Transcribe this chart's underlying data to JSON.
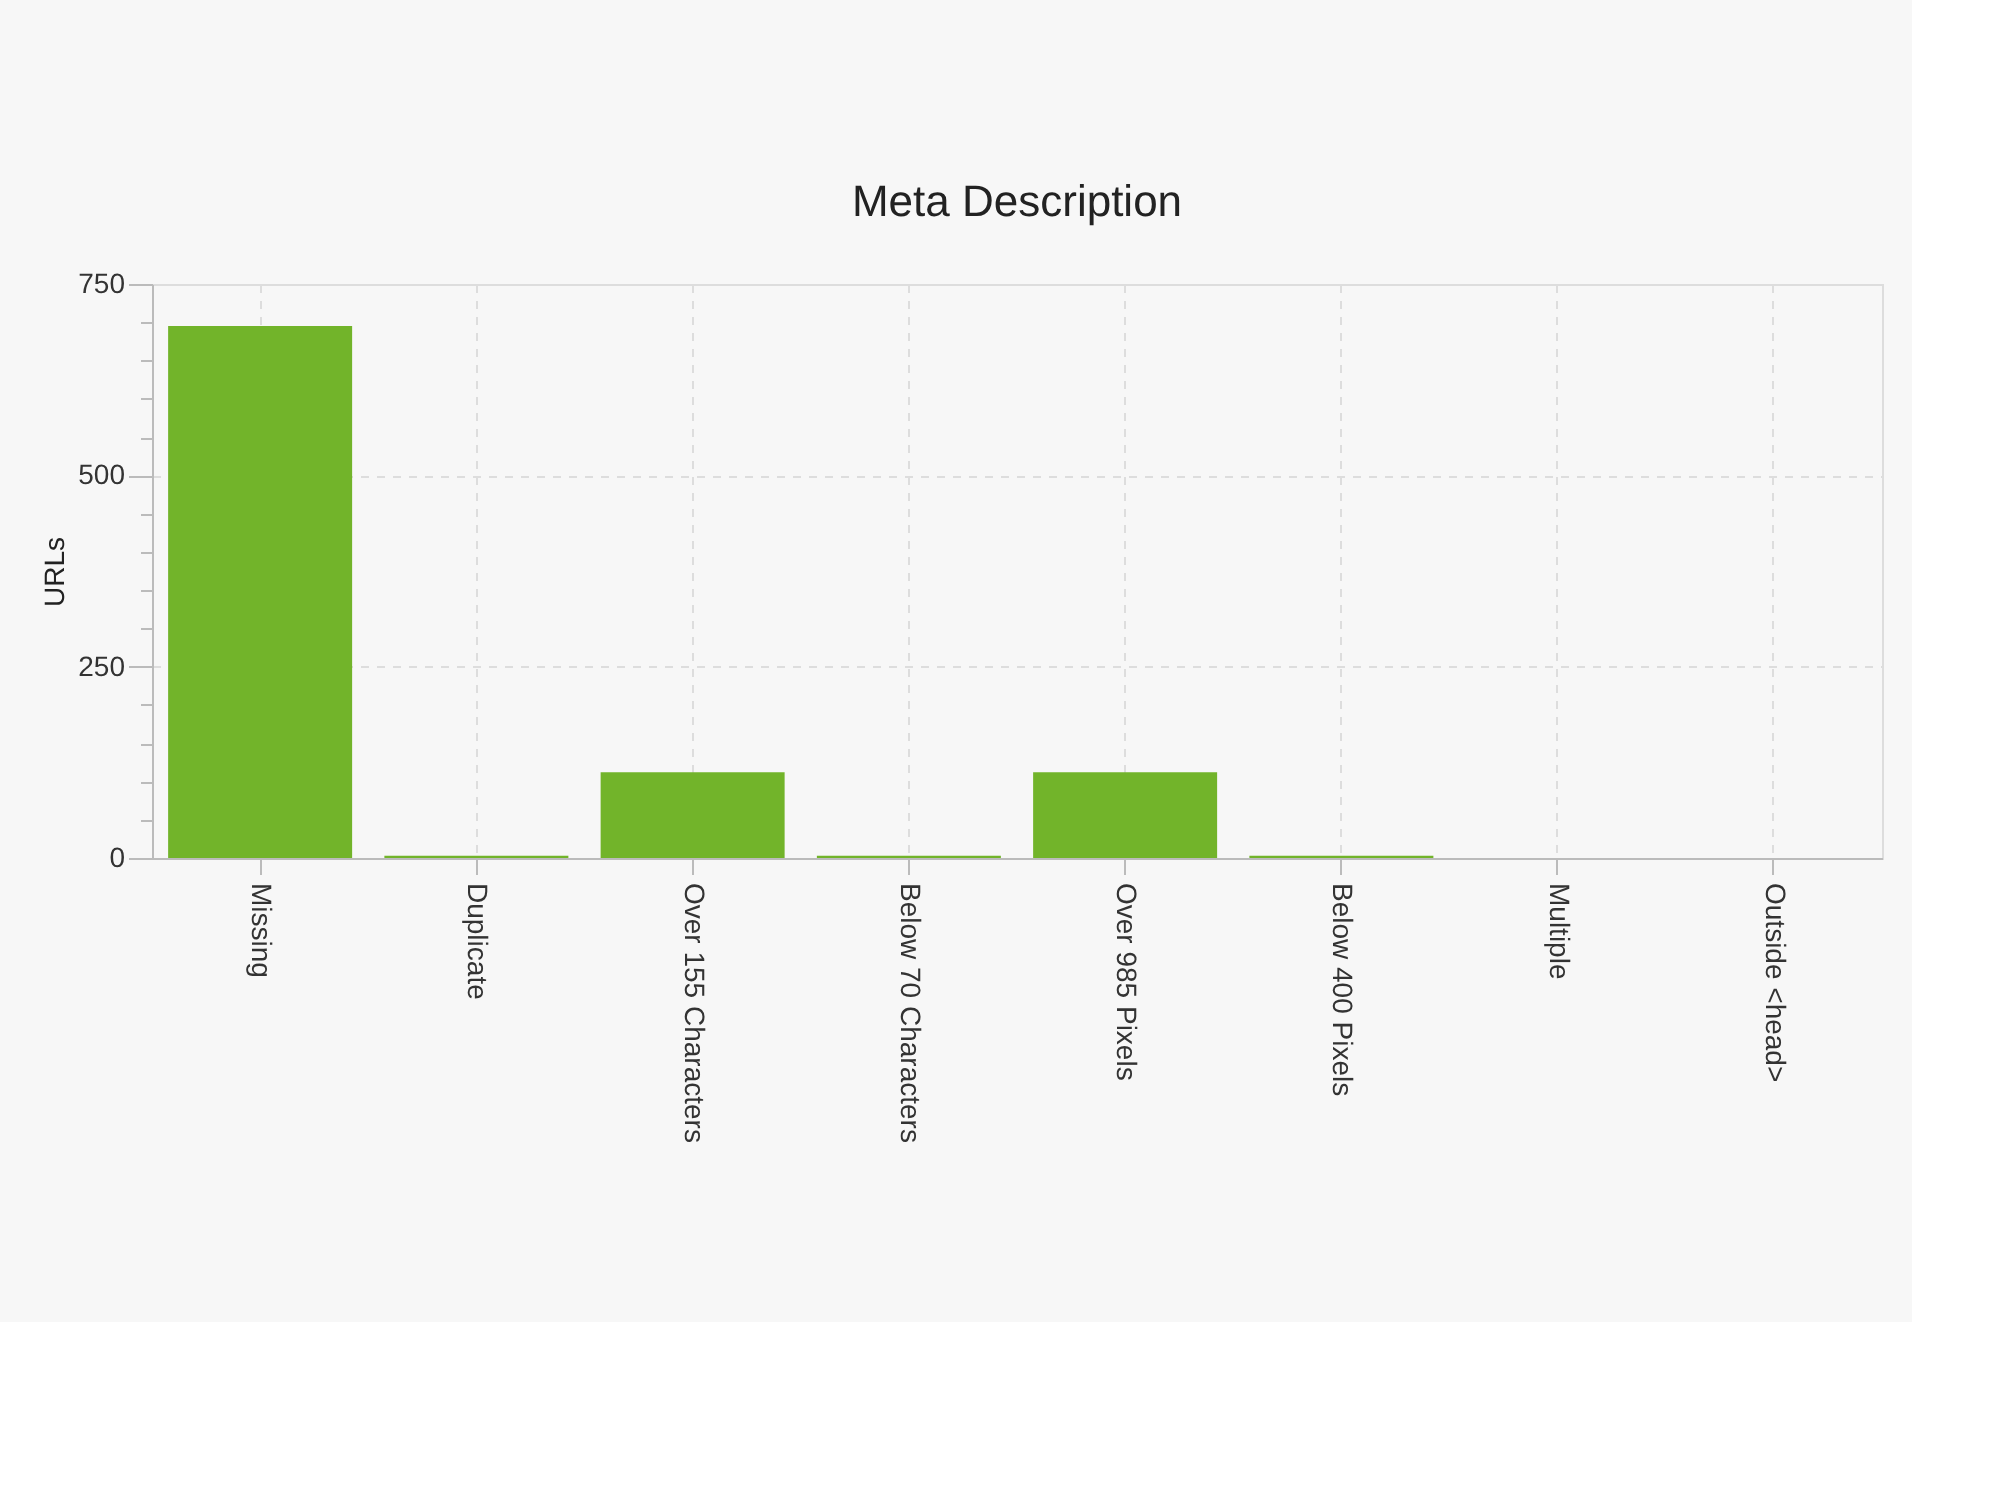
{
  "chart_data": {
    "type": "bar",
    "title": "Meta Description",
    "ylabel": "URLs",
    "categories": [
      "Missing",
      "Duplicate",
      "Over 155 Characters",
      "Below 70 Characters",
      "Over 985 Pixels",
      "Below 400 Pixels",
      "Multiple",
      "Outside <head>"
    ],
    "values": [
      695,
      3,
      112,
      3,
      112,
      3,
      0,
      0
    ],
    "color": "#72b42a",
    "ylim": [
      0,
      750
    ],
    "yticks": [
      0,
      {
        "value": 50,
        "label": null
      },
      {
        "value": 100,
        "label": null
      },
      {
        "value": 150,
        "label": null
      },
      {
        "value": 200,
        "label": null
      },
      250,
      {
        "value": 300,
        "label": null
      },
      {
        "value": 350,
        "label": null
      },
      {
        "value": 400,
        "label": null
      },
      {
        "value": 450,
        "label": null
      },
      500,
      {
        "value": 550,
        "label": null
      },
      {
        "value": 600,
        "label": null
      },
      {
        "value": 650,
        "label": null
      },
      {
        "value": 700,
        "label": null
      },
      750
    ],
    "grid": true
  }
}
